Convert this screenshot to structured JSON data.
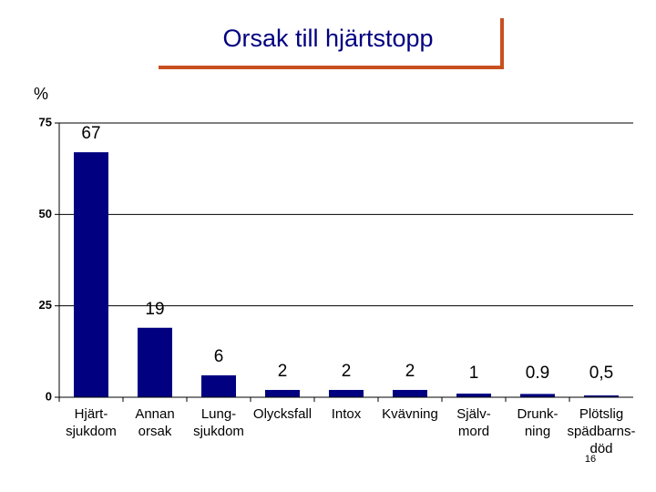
{
  "chart_data": {
    "type": "bar",
    "title": "Orsak till hjärtstopp",
    "y_label": "%",
    "categories": [
      "Hjärt-\nsjukdom",
      "Annan\norsak",
      "Lung-\nsjukdom",
      "Olycksfall",
      "Intox",
      "Kvävning",
      "Själv-\nmord",
      "Drunk-\nning",
      "Plötslig\nspädbarns-\ndöd"
    ],
    "values": [
      67,
      19,
      6,
      2,
      2,
      2,
      1,
      0.9,
      0.5
    ],
    "value_labels": [
      "67",
      "19",
      "6",
      "2",
      "2",
      "2",
      "1",
      "0.9",
      "0,5"
    ],
    "color": "#000080",
    "ylim": [
      0,
      75
    ],
    "yticks": [
      0,
      25,
      50,
      75
    ],
    "grid": true
  },
  "page_number": "16"
}
